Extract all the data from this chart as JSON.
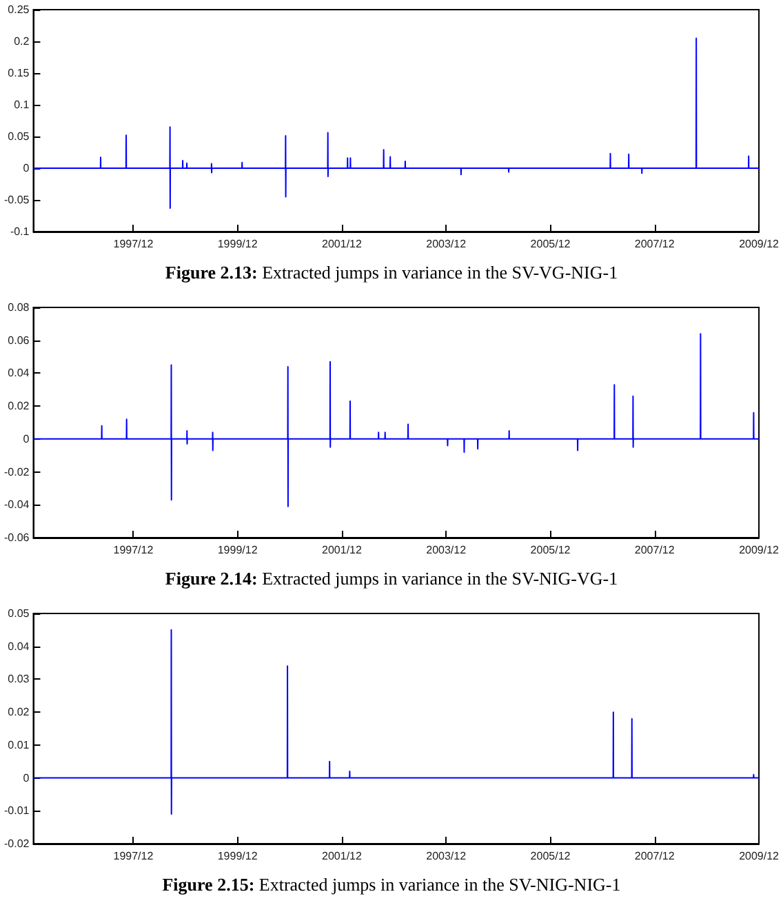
{
  "chart_data": [
    {
      "type": "line",
      "title": "Figure 2.13: Extracted jumps in variance in the SV-VG-NIG-1",
      "xlim": [
        "1996-01",
        "2009-12"
      ],
      "xticks": [
        {
          "value": "1997-12",
          "label": "1997/12"
        },
        {
          "value": "1999-12",
          "label": "1999/12"
        },
        {
          "value": "2001-12",
          "label": "2001/12"
        },
        {
          "value": "2003-12",
          "label": "2003/12"
        },
        {
          "value": "2005-12",
          "label": "2005/12"
        },
        {
          "value": "2007-12",
          "label": "2007/12"
        },
        {
          "value": "2009-12",
          "label": "2009/12"
        }
      ],
      "ylim": [
        -0.1,
        0.25
      ],
      "yticks": [
        -0.1,
        -0.05,
        0,
        0.05,
        0.1,
        0.15,
        0.2,
        0.25
      ],
      "grid": false,
      "series": [
        {
          "color": "#0000ff",
          "x": [
            "1996-01-01",
            "1997-04-15",
            "1997-04-16",
            "1997-04-17",
            "1997-10-11",
            "1997-10-12",
            "1997-10-13",
            "1998-08-14",
            "1998-08-15",
            "1998-08-16",
            "1998-08-17",
            "1998-11-11",
            "1998-11-12",
            "1998-11-13",
            "1998-12-10",
            "1998-12-11",
            "1998-12-12",
            "1999-06-01",
            "1999-06-02",
            "1999-06-03",
            "1999-06-04",
            "2000-01-01",
            "2000-01-02",
            "2000-01-03",
            "2000-11-01",
            "2000-11-02",
            "2000-11-03",
            "2000-11-04",
            "2001-08-24",
            "2001-08-25",
            "2001-08-26",
            "2001-08-27",
            "2002-01-09",
            "2002-01-10",
            "2002-01-11",
            "2002-01-29",
            "2002-01-30",
            "2002-01-31",
            "2002-09-19",
            "2002-09-20",
            "2002-09-21",
            "2002-11-04",
            "2002-11-05",
            "2002-11-06",
            "2003-02-17",
            "2003-02-18",
            "2003-02-19",
            "2004-03-14",
            "2004-03-15",
            "2004-03-16",
            "2005-02-11",
            "2005-02-12",
            "2005-02-13",
            "2007-01-24",
            "2007-01-25",
            "2007-01-26",
            "2007-06-02",
            "2007-06-03",
            "2007-06-04",
            "2007-09-02",
            "2007-09-03",
            "2007-09-04",
            "2008-09-17",
            "2008-09-18",
            "2008-09-19",
            "2009-09-19",
            "2009-09-20",
            "2009-09-21",
            "2009-12-01"
          ],
          "values": [
            0,
            0,
            0.017,
            0,
            0,
            0.052,
            0,
            0,
            0.065,
            -0.063,
            0,
            0,
            0.012,
            0,
            0,
            0.008,
            0,
            0,
            0.007,
            -0.007,
            0,
            0,
            0.009,
            0,
            0,
            0.051,
            -0.045,
            0,
            0,
            0.056,
            -0.013,
            0,
            0,
            0.016,
            0,
            0,
            0.016,
            0,
            0,
            0.029,
            0,
            0,
            0.018,
            0,
            0,
            0.011,
            0,
            0,
            -0.01,
            0,
            0,
            -0.006,
            0,
            0,
            0.023,
            0,
            0,
            0.022,
            0,
            0,
            -0.008,
            0,
            0,
            0.205,
            0,
            0,
            0.019,
            0,
            0
          ]
        }
      ]
    },
    {
      "type": "line",
      "title": "Figure 2.14: Extracted jumps in variance in the SV-NIG-VG-1",
      "xlim": [
        "1996-01",
        "2009-12"
      ],
      "xticks": [
        {
          "value": "1997-12",
          "label": "1997/12"
        },
        {
          "value": "1999-12",
          "label": "1999/12"
        },
        {
          "value": "2001-12",
          "label": "2001/12"
        },
        {
          "value": "2003-12",
          "label": "2003/12"
        },
        {
          "value": "2005-12",
          "label": "2005/12"
        },
        {
          "value": "2007-12",
          "label": "2007/12"
        },
        {
          "value": "2009-12",
          "label": "2009/12"
        }
      ],
      "ylim": [
        -0.06,
        0.08
      ],
      "yticks": [
        -0.06,
        -0.04,
        -0.02,
        0,
        0.02,
        0.04,
        0.06,
        0.08
      ],
      "grid": false,
      "series": [
        {
          "color": "#0000ff",
          "x": [
            "1996-01-01",
            "1997-04-23",
            "1997-04-24",
            "1997-04-25",
            "1997-10-14",
            "1997-10-15",
            "1997-10-16",
            "1998-08-23",
            "1998-08-24",
            "1998-08-25",
            "1998-08-26",
            "1998-12-11",
            "1998-12-12",
            "1998-12-13",
            "1998-12-14",
            "1999-06-09",
            "1999-06-10",
            "1999-06-11",
            "1999-06-12",
            "2000-11-17",
            "2000-11-18",
            "2000-11-19",
            "2000-11-20",
            "2001-09-09",
            "2001-09-10",
            "2001-09-11",
            "2001-09-12",
            "2002-01-27",
            "2002-01-28",
            "2002-01-29",
            "2002-08-14",
            "2002-08-15",
            "2002-08-16",
            "2002-09-29",
            "2002-09-30",
            "2002-10-01",
            "2003-03-09",
            "2003-03-10",
            "2003-03-11",
            "2003-12-11",
            "2003-12-12",
            "2003-12-13",
            "2004-04-05",
            "2004-04-06",
            "2004-04-07",
            "2004-07-09",
            "2004-07-10",
            "2004-07-11",
            "2005-02-14",
            "2005-02-15",
            "2005-02-16",
            "2006-06-09",
            "2006-06-10",
            "2006-06-11",
            "2007-02-21",
            "2007-02-22",
            "2007-02-23",
            "2007-07-02",
            "2007-07-03",
            "2007-07-04",
            "2007-07-05",
            "2008-10-17",
            "2008-10-18",
            "2008-10-19",
            "2009-10-24",
            "2009-10-25",
            "2009-10-26",
            "2009-12-01"
          ],
          "values": [
            0,
            0,
            0.008,
            0,
            0,
            0.012,
            0,
            0,
            0.045,
            -0.037,
            0,
            0,
            0.005,
            -0.003,
            0,
            0,
            0.004,
            -0.007,
            0,
            0,
            0.044,
            -0.041,
            0,
            0,
            0.047,
            -0.005,
            0,
            0,
            0.023,
            0,
            0,
            0.004,
            0,
            0,
            0.004,
            0,
            0,
            0.009,
            0,
            0,
            -0.004,
            0,
            0,
            -0.008,
            0,
            0,
            -0.006,
            0,
            0,
            0.005,
            0,
            0,
            -0.007,
            0,
            0,
            0.033,
            0,
            0,
            0.026,
            -0.005,
            0,
            0,
            0.064,
            0,
            0,
            0.016,
            0,
            0
          ]
        }
      ]
    },
    {
      "type": "line",
      "title": "Figure 2.15: Extracted jumps in variance in the SV-NIG-NIG-1",
      "xlim": [
        "1996-01",
        "2009-12"
      ],
      "xticks": [
        {
          "value": "1997-12",
          "label": "1997/12"
        },
        {
          "value": "1999-12",
          "label": "1999/12"
        },
        {
          "value": "2001-12",
          "label": "2001/12"
        },
        {
          "value": "2003-12",
          "label": "2003/12"
        },
        {
          "value": "2005-12",
          "label": "2005/12"
        },
        {
          "value": "2007-12",
          "label": "2007/12"
        },
        {
          "value": "2009-12",
          "label": "2009/12"
        }
      ],
      "ylim": [
        -0.02,
        0.05
      ],
      "yticks": [
        -0.02,
        -0.01,
        0,
        0.01,
        0.02,
        0.03,
        0.04,
        0.05
      ],
      "grid": false,
      "series": [
        {
          "color": "#0000ff",
          "x": [
            "1996-01-01",
            "1998-08-23",
            "1998-08-24",
            "1998-08-25",
            "1998-08-26",
            "2000-11-14",
            "2000-11-15",
            "2000-11-16",
            "2001-09-05",
            "2001-09-06",
            "2001-09-07",
            "2002-01-24",
            "2002-01-25",
            "2002-01-26",
            "2007-02-14",
            "2007-02-15",
            "2007-02-16",
            "2007-06-24",
            "2007-06-25",
            "2007-06-26",
            "2009-10-24",
            "2009-10-25",
            "2009-10-26",
            "2009-12-01"
          ],
          "values": [
            0,
            0,
            0.045,
            -0.011,
            0,
            0,
            0.034,
            0,
            0,
            0.005,
            0,
            0,
            0.002,
            0,
            0,
            0.02,
            0,
            0,
            0.018,
            0,
            0,
            0.001,
            0,
            0
          ]
        }
      ]
    }
  ]
}
